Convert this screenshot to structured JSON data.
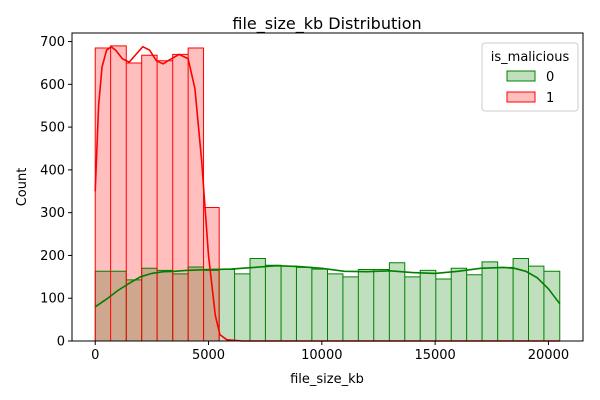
{
  "chart_data": {
    "type": "histogram",
    "title": "file_size_kb Distribution",
    "xlabel": "file_size_kb",
    "ylabel": "Count",
    "xlim": [
      -1025,
      21525
    ],
    "ylim": [
      0,
      720
    ],
    "x_ticks": [
      0,
      5000,
      10000,
      15000,
      20000
    ],
    "y_ticks": [
      0,
      100,
      200,
      300,
      400,
      500,
      600,
      700
    ],
    "grid": false,
    "legend": {
      "title": "is_malicious",
      "placement": "top-right",
      "entries": [
        "0",
        "1"
      ]
    },
    "series": [
      {
        "name": "0",
        "color": "#008000",
        "fill_color": "rgba(0,128,0,0.25)",
        "bins": [
          [
            0,
            1370,
            163
          ],
          [
            1370,
            2050,
            143
          ],
          [
            2050,
            2730,
            170
          ],
          [
            2730,
            3420,
            165
          ],
          [
            3420,
            4100,
            157
          ],
          [
            4100,
            4780,
            173
          ],
          [
            4780,
            5470,
            165
          ],
          [
            5470,
            6150,
            167
          ],
          [
            6150,
            6830,
            157
          ],
          [
            6830,
            7510,
            193
          ],
          [
            7510,
            8200,
            177
          ],
          [
            8200,
            8880,
            175
          ],
          [
            8880,
            9560,
            172
          ],
          [
            9560,
            10250,
            168
          ],
          [
            10250,
            10930,
            157
          ],
          [
            10930,
            11610,
            150
          ],
          [
            11610,
            12290,
            167
          ],
          [
            12290,
            12980,
            167
          ],
          [
            12980,
            13660,
            183
          ],
          [
            13660,
            14340,
            150
          ],
          [
            14340,
            15030,
            165
          ],
          [
            15030,
            15710,
            145
          ],
          [
            15710,
            16390,
            170
          ],
          [
            16390,
            17070,
            155
          ],
          [
            17070,
            17760,
            185
          ],
          [
            17760,
            18440,
            172
          ],
          [
            18440,
            19120,
            193
          ],
          [
            19120,
            19800,
            175
          ],
          [
            19800,
            20500,
            163
          ]
        ],
        "kde": [
          [
            0,
            80
          ],
          [
            500,
            98
          ],
          [
            1000,
            118
          ],
          [
            1500,
            135
          ],
          [
            2000,
            150
          ],
          [
            2500,
            158
          ],
          [
            3000,
            162
          ],
          [
            3500,
            163
          ],
          [
            4000,
            165
          ],
          [
            5000,
            167
          ],
          [
            6000,
            168
          ],
          [
            7000,
            172
          ],
          [
            8000,
            176
          ],
          [
            9000,
            174
          ],
          [
            10000,
            170
          ],
          [
            11000,
            163
          ],
          [
            12000,
            162
          ],
          [
            13000,
            164
          ],
          [
            14000,
            160
          ],
          [
            15000,
            158
          ],
          [
            16000,
            163
          ],
          [
            17000,
            170
          ],
          [
            18000,
            172
          ],
          [
            18500,
            170
          ],
          [
            19000,
            163
          ],
          [
            19500,
            148
          ],
          [
            20000,
            122
          ],
          [
            20500,
            87
          ]
        ]
      },
      {
        "name": "1",
        "color": "#ff0000",
        "fill_color": "rgba(255,0,0,0.25)",
        "bins": [
          [
            0,
            680,
            685
          ],
          [
            680,
            1370,
            690
          ],
          [
            1370,
            2050,
            650
          ],
          [
            2050,
            2730,
            668
          ],
          [
            2730,
            3420,
            655
          ],
          [
            3420,
            4100,
            670
          ],
          [
            4100,
            4780,
            685
          ],
          [
            4780,
            5470,
            312
          ]
        ],
        "kde": [
          [
            0,
            350
          ],
          [
            150,
            550
          ],
          [
            300,
            640
          ],
          [
            500,
            680
          ],
          [
            700,
            688
          ],
          [
            900,
            680
          ],
          [
            1200,
            660
          ],
          [
            1500,
            652
          ],
          [
            1800,
            670
          ],
          [
            2100,
            688
          ],
          [
            2400,
            680
          ],
          [
            2700,
            655
          ],
          [
            3000,
            648
          ],
          [
            3300,
            658
          ],
          [
            3700,
            670
          ],
          [
            4100,
            660
          ],
          [
            4400,
            590
          ],
          [
            4700,
            420
          ],
          [
            5000,
            200
          ],
          [
            5300,
            60
          ],
          [
            5500,
            15
          ],
          [
            5800,
            3
          ],
          [
            6500,
            0
          ],
          [
            20500,
            0
          ]
        ]
      }
    ]
  }
}
